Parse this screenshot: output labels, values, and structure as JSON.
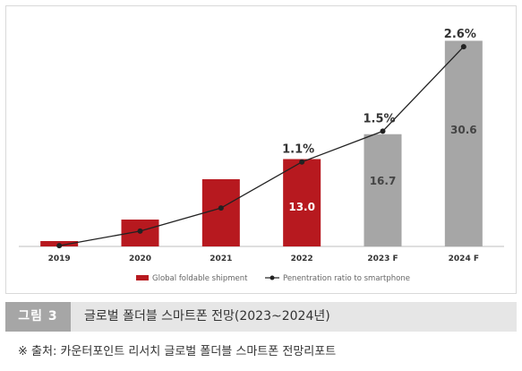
{
  "chart_data": {
    "type": "bar",
    "categories": [
      "2019",
      "2020",
      "2021",
      "2022",
      "2023 F",
      "2024 F"
    ],
    "series": [
      {
        "name": "Global foldable shipment",
        "type": "bar",
        "values": [
          0.8,
          4.0,
          10.0,
          13.0,
          16.7,
          30.6
        ],
        "value_labels": [
          "",
          "",
          "",
          "13.0",
          "16.7",
          "30.6"
        ],
        "colors": [
          "#b7191f",
          "#b7191f",
          "#b7191f",
          "#b7191f",
          "#a6a6a6",
          "#a6a6a6"
        ]
      },
      {
        "name": "Penentration ratio to smartphone",
        "type": "line",
        "values": [
          0.01,
          0.2,
          0.5,
          1.1,
          1.5,
          2.6
        ],
        "value_labels": [
          "",
          "",
          "",
          "1.1%",
          "1.5%",
          "2.6%"
        ],
        "color": "#222222"
      }
    ],
    "ylim": [
      0,
      32
    ],
    "ylim_secondary": [
      0,
      2.8
    ],
    "grid": false,
    "legend_position": "bottom"
  },
  "caption": {
    "tag": "그림 3",
    "text": "글로벌 폴더블 스마트폰 전망(2023~2024년)"
  },
  "source": "※ 출처: 카운터포인트 리서치 글로벌 폴더블 스마트폰 전망리포트"
}
